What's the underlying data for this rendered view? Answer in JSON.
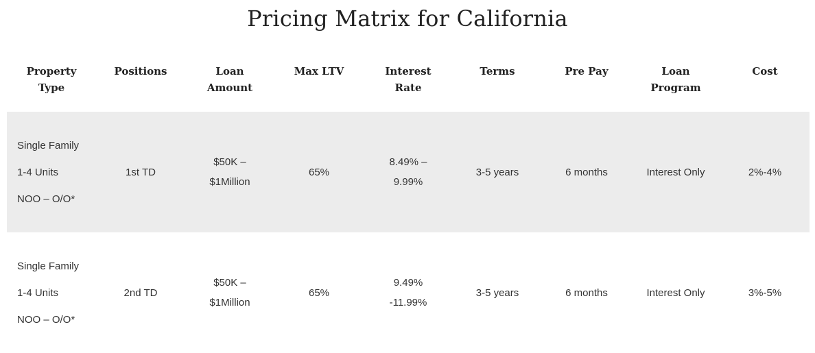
{
  "page": {
    "title": "Pricing Matrix for California"
  },
  "table": {
    "headers": [
      [
        "Property",
        "Type"
      ],
      [
        "Positions"
      ],
      [
        "Loan",
        "Amount"
      ],
      [
        "Max LTV"
      ],
      [
        "Interest",
        "Rate"
      ],
      [
        "Terms"
      ],
      [
        "Pre Pay"
      ],
      [
        "Loan",
        "Program"
      ],
      [
        "Cost"
      ]
    ],
    "rows": [
      {
        "property_type": [
          "Single Family",
          "1-4 Units",
          "NOO – O/O*"
        ],
        "position": "1st TD",
        "loan_amount": [
          "$50K –",
          "$1Million"
        ],
        "max_ltv": "65%",
        "interest_rate": [
          "8.49% –",
          "9.99%"
        ],
        "terms": "3-5 years",
        "pre_pay": "6 months",
        "loan_program": "Interest Only",
        "cost": "2%-4%"
      },
      {
        "property_type": [
          "Single Family",
          "1-4 Units",
          "NOO – O/O*"
        ],
        "position": "2nd TD",
        "loan_amount": [
          "$50K –",
          "$1Million"
        ],
        "max_ltv": "65%",
        "interest_rate": [
          "9.49%",
          "-11.99%"
        ],
        "terms": "3-5 years",
        "pre_pay": "6 months",
        "loan_program": "Interest Only",
        "cost": "3%-5%"
      }
    ]
  },
  "colors": {
    "shaded_row": "#ececec",
    "text": "#333333",
    "heading": "#222222"
  }
}
